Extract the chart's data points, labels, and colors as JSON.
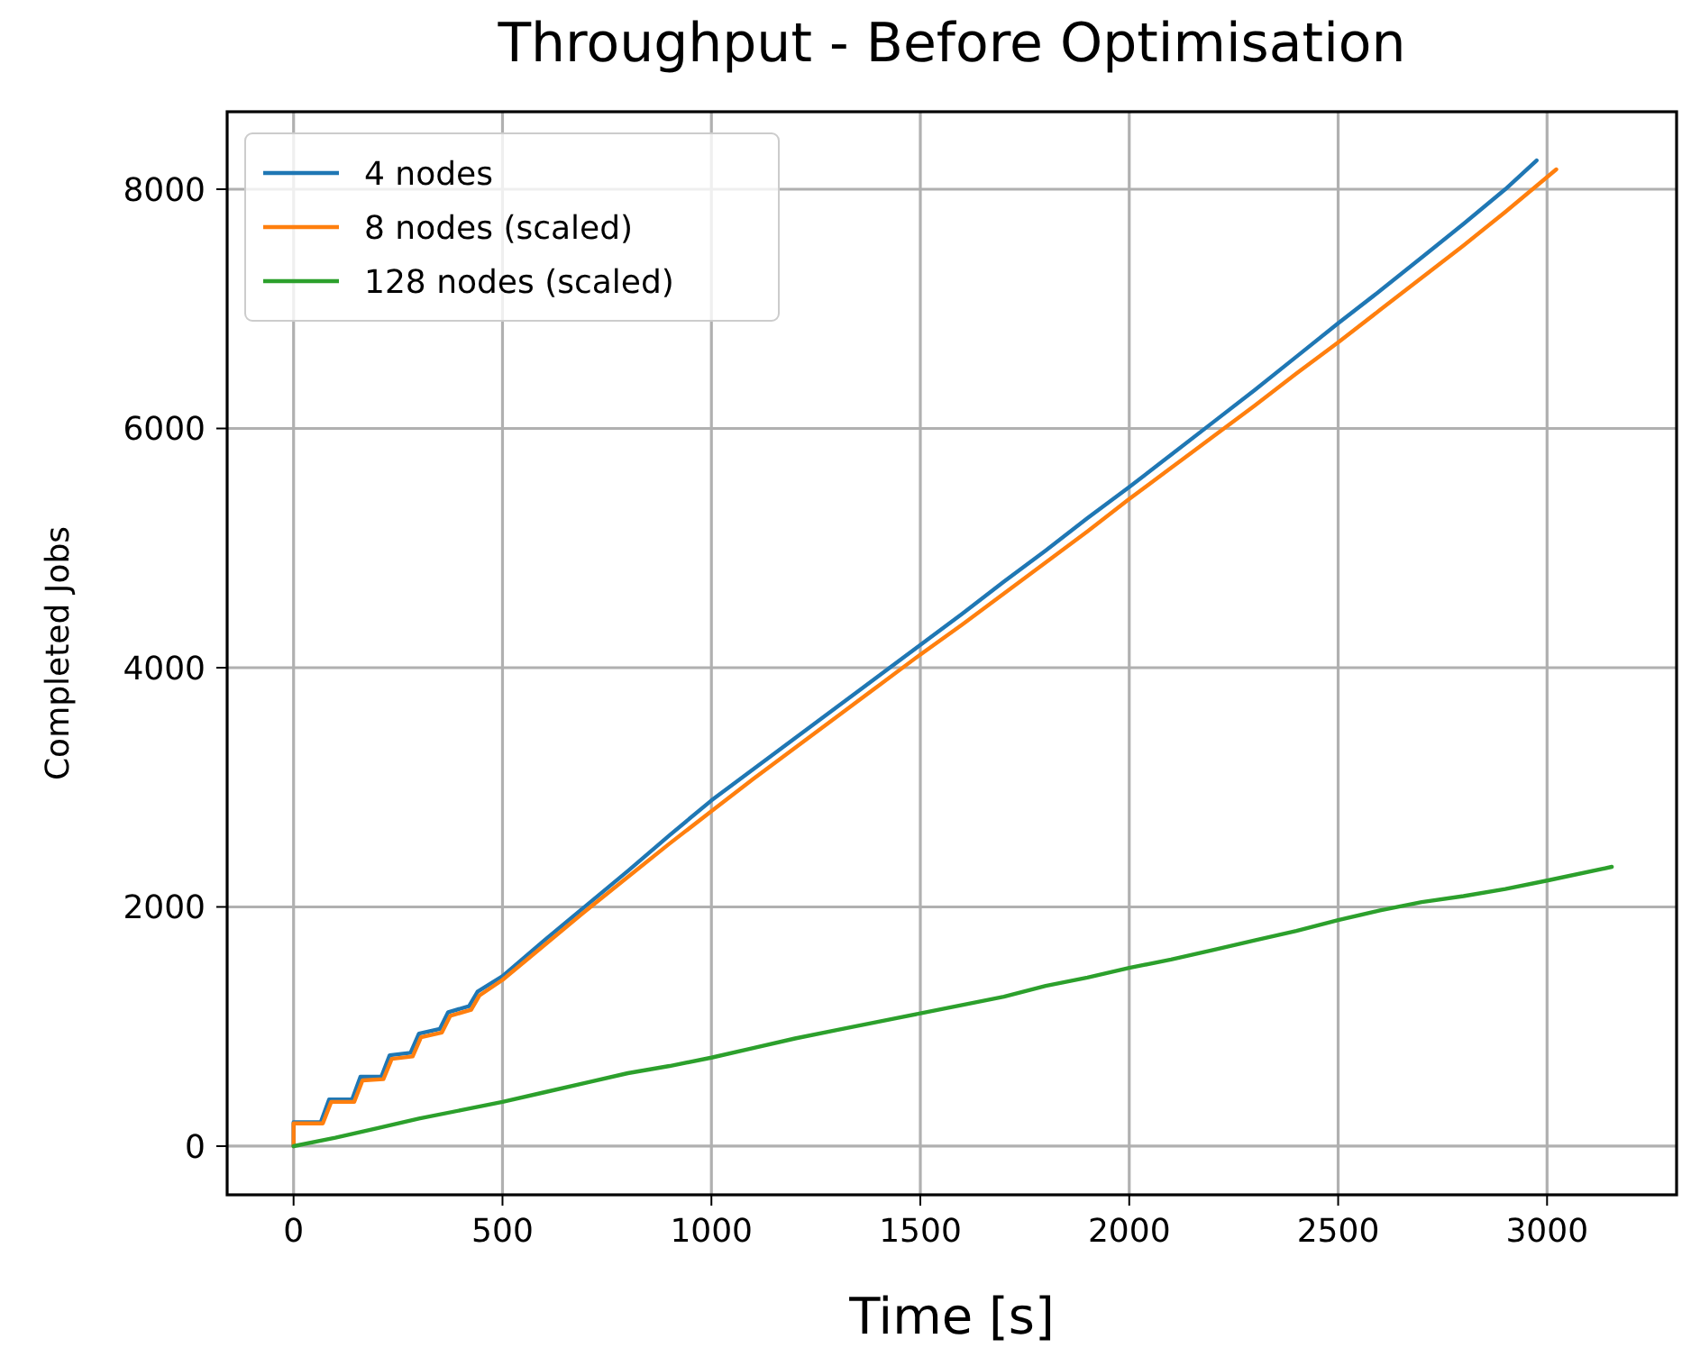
{
  "chart_data": {
    "type": "line",
    "title": "Throughput - Before Optimisation",
    "xlabel": "Time [s]",
    "ylabel": "Completed Jobs",
    "xlim": [
      -159,
      3310
    ],
    "ylim": [
      -407,
      8648
    ],
    "xticks": [
      0,
      500,
      1000,
      1500,
      2000,
      2500,
      3000
    ],
    "yticks": [
      0,
      2000,
      4000,
      6000,
      8000
    ],
    "grid": true,
    "legend": "top left",
    "series": [
      {
        "name": "4 nodes",
        "color": "#1f77b4",
        "x": [
          0,
          0,
          65,
          85,
          140,
          160,
          210,
          230,
          280,
          300,
          350,
          370,
          420,
          440,
          500,
          600,
          700,
          800,
          900,
          1000,
          1100,
          1200,
          1300,
          1400,
          1500,
          1600,
          1700,
          1800,
          1900,
          2000,
          2100,
          2200,
          2300,
          2400,
          2500,
          2600,
          2700,
          2800,
          2900,
          2975
        ],
        "values": [
          0,
          200,
          200,
          390,
          390,
          580,
          580,
          760,
          780,
          940,
          980,
          1120,
          1170,
          1290,
          1420,
          1720,
          2010,
          2300,
          2600,
          2890,
          3150,
          3410,
          3670,
          3930,
          4190,
          4450,
          4720,
          4980,
          5250,
          5510,
          5780,
          6050,
          6320,
          6600,
          6880,
          7150,
          7430,
          7710,
          8000,
          8241
        ]
      },
      {
        "name": "8 nodes (scaled)",
        "color": "#ff7f0e",
        "x": [
          0,
          0,
          70,
          90,
          145,
          165,
          215,
          235,
          285,
          305,
          355,
          375,
          425,
          445,
          500,
          600,
          700,
          800,
          900,
          1000,
          1100,
          1200,
          1300,
          1400,
          1500,
          1600,
          1700,
          1800,
          1900,
          2000,
          2100,
          2200,
          2300,
          2400,
          2500,
          2600,
          2700,
          2800,
          2900,
          3022
        ],
        "values": [
          0,
          190,
          190,
          370,
          370,
          550,
          560,
          730,
          750,
          910,
          950,
          1090,
          1140,
          1260,
          1390,
          1680,
          1970,
          2250,
          2530,
          2800,
          3070,
          3330,
          3590,
          3850,
          4110,
          4360,
          4620,
          4880,
          5140,
          5410,
          5670,
          5930,
          6190,
          6460,
          6720,
          6990,
          7260,
          7530,
          7810,
          8166
        ]
      },
      {
        "name": "128 nodes (scaled)",
        "color": "#2ca02c",
        "x": [
          0,
          100,
          200,
          300,
          400,
          500,
          600,
          700,
          800,
          900,
          1000,
          1100,
          1200,
          1300,
          1400,
          1500,
          1600,
          1700,
          1800,
          1900,
          2000,
          2100,
          2200,
          2300,
          2400,
          2500,
          2600,
          2700,
          2800,
          2900,
          3000,
          3155
        ],
        "values": [
          0,
          70,
          150,
          230,
          300,
          370,
          450,
          530,
          610,
          670,
          740,
          820,
          900,
          970,
          1040,
          1110,
          1180,
          1250,
          1340,
          1410,
          1490,
          1560,
          1640,
          1720,
          1800,
          1890,
          1970,
          2040,
          2090,
          2150,
          2220,
          2335
        ]
      }
    ]
  }
}
